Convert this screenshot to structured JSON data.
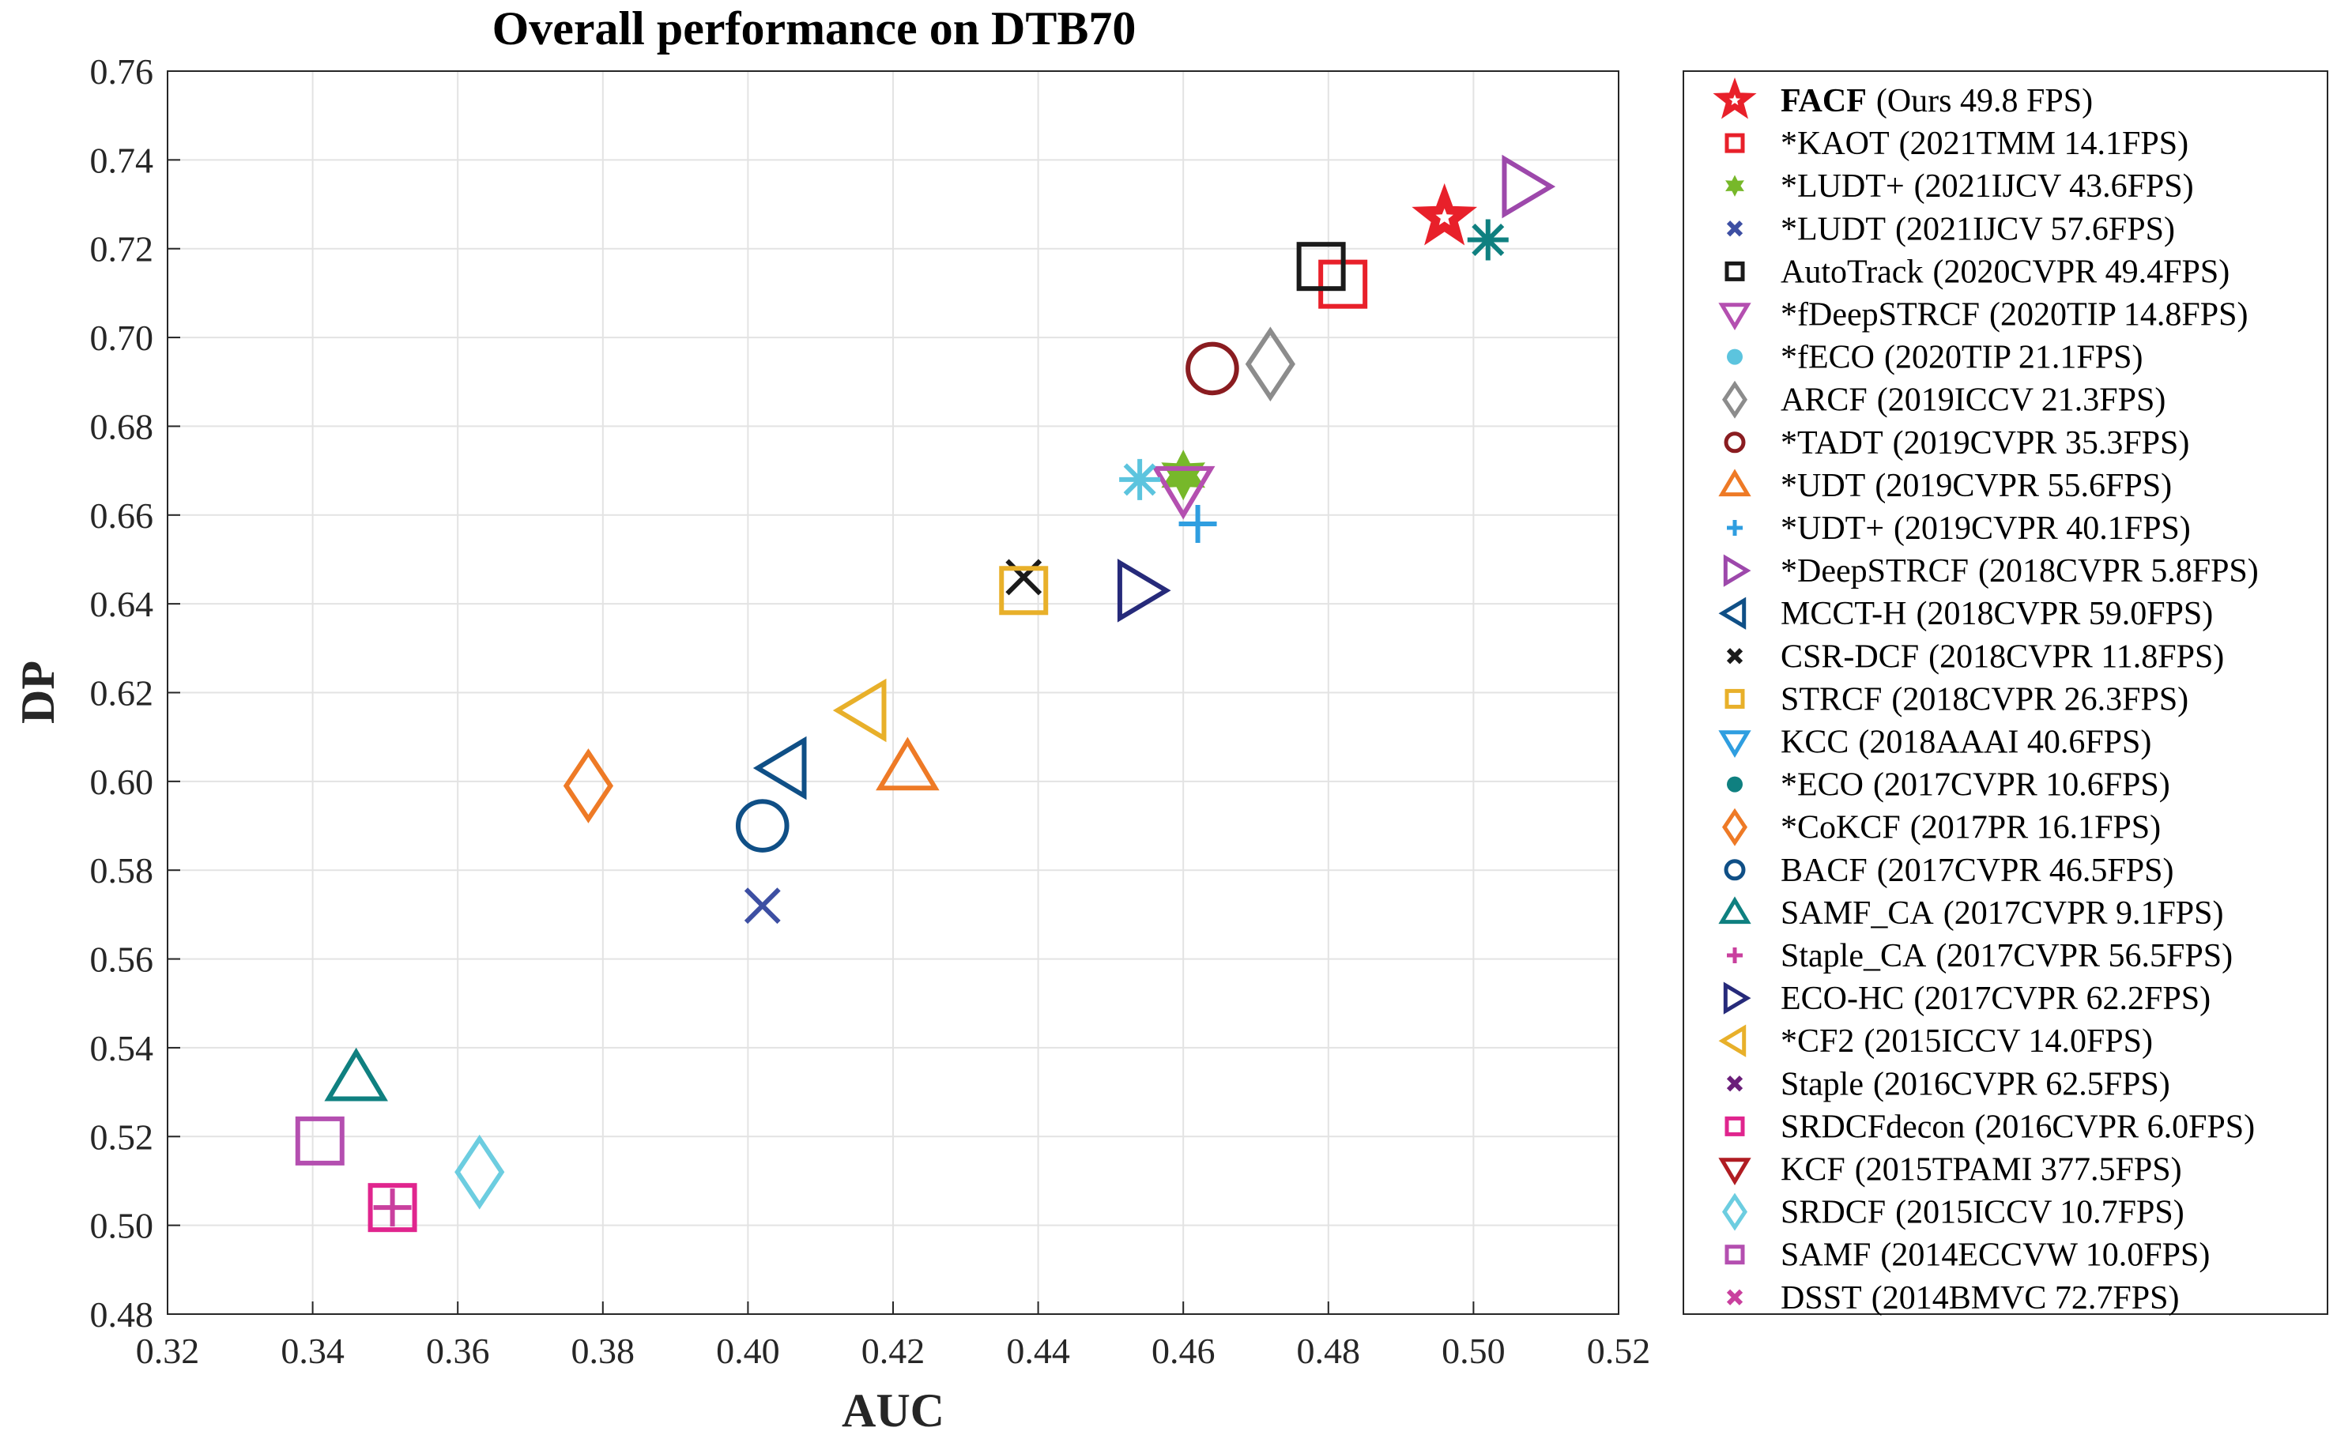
{
  "chart_data": {
    "type": "scatter",
    "title": "Overall performance on DTB70",
    "xlabel": "AUC",
    "ylabel": "DP",
    "xlim": [
      0.32,
      0.52
    ],
    "ylim": [
      0.48,
      0.76
    ],
    "xticks": [
      "0.32",
      "0.34",
      "0.36",
      "0.38",
      "0.40",
      "0.42",
      "0.44",
      "0.46",
      "0.48",
      "0.50",
      "0.52"
    ],
    "yticks": [
      "0.48",
      "0.50",
      "0.52",
      "0.54",
      "0.56",
      "0.58",
      "0.60",
      "0.62",
      "0.64",
      "0.66",
      "0.68",
      "0.70",
      "0.72",
      "0.74",
      "0.76"
    ],
    "grid": true,
    "legend_position": "outside-right",
    "series": [
      {
        "name": "FACF",
        "detail": "(Ours 49.8 FPS)",
        "bold": true,
        "marker": "star",
        "color": "#e8202a",
        "x": 0.496,
        "y": 0.727
      },
      {
        "name": "*KAOT",
        "detail": "(2021TMM 14.1FPS)",
        "marker": "square",
        "color": "#e8202a",
        "x": 0.482,
        "y": 0.712
      },
      {
        "name": "*LUDT+",
        "detail": "(2021IJCV 43.6FPS)",
        "marker": "hexagram",
        "color": "#77b82a",
        "x": 0.46,
        "y": 0.669
      },
      {
        "name": "*LUDT",
        "detail": "(2021IJCV 57.6FPS)",
        "marker": "x",
        "color": "#3d4fa3",
        "x": 0.402,
        "y": 0.572
      },
      {
        "name": "AutoTrack",
        "detail": "(2020CVPR 49.4FPS)",
        "marker": "square",
        "color": "#1a1a1a",
        "x": 0.479,
        "y": 0.716
      },
      {
        "name": "*fDeepSTRCF",
        "detail": "(2020TIP 14.8FPS)",
        "marker": "triangle-down",
        "color": "#b44fb0",
        "x": 0.46,
        "y": 0.666
      },
      {
        "name": "*fECO",
        "detail": "(2020TIP 21.1FPS)",
        "marker": "asterisk",
        "color": "#5cc4de",
        "x": 0.454,
        "y": 0.668
      },
      {
        "name": "ARCF",
        "detail": "(2019ICCV 21.3FPS)",
        "marker": "diamond",
        "color": "#8c8c8c",
        "x": 0.472,
        "y": 0.694
      },
      {
        "name": "*TADT",
        "detail": "(2019CVPR 35.3FPS)",
        "marker": "circle",
        "color": "#8a1c20",
        "x": 0.464,
        "y": 0.693
      },
      {
        "name": "*UDT",
        "detail": "(2019CVPR 55.6FPS)",
        "marker": "triangle-up",
        "color": "#ee7a26",
        "x": 0.422,
        "y": 0.603
      },
      {
        "name": "*UDT+",
        "detail": "(2019CVPR 40.1FPS)",
        "marker": "plus",
        "color": "#2f9ee0",
        "x": 0.462,
        "y": 0.658
      },
      {
        "name": "*DeepSTRCF",
        "detail": "(2018CVPR 5.8FPS)",
        "marker": "triangle-right",
        "color": "#9d48ab",
        "x": 0.507,
        "y": 0.734
      },
      {
        "name": "MCCT-H",
        "detail": "(2018CVPR 59.0FPS)",
        "marker": "triangle-left",
        "color": "#0f4f86",
        "x": 0.405,
        "y": 0.603
      },
      {
        "name": "CSR-DCF",
        "detail": "(2018CVPR 11.8FPS)",
        "marker": "x",
        "color": "#1a1a1a",
        "x": 0.438,
        "y": 0.646
      },
      {
        "name": "STRCF",
        "detail": "(2018CVPR 26.3FPS)",
        "marker": "square",
        "color": "#e8b02a",
        "x": 0.438,
        "y": 0.643
      },
      {
        "name": "KCC",
        "detail": "(2018AAAI 40.6FPS)",
        "marker": "triangle-down",
        "color": "#2f9ee0",
        "x": null,
        "y": null
      },
      {
        "name": "*ECO",
        "detail": "(2017CVPR 10.6FPS)",
        "marker": "asterisk",
        "color": "#0f8080",
        "x": 0.502,
        "y": 0.722
      },
      {
        "name": "*CoKCF",
        "detail": "(2017PR 16.1FPS)",
        "marker": "diamond",
        "color": "#ee7a26",
        "x": 0.378,
        "y": 0.599
      },
      {
        "name": "BACF",
        "detail": "(2017CVPR 46.5FPS)",
        "marker": "circle",
        "color": "#0f4f86",
        "x": 0.402,
        "y": 0.59
      },
      {
        "name": "SAMF_CA",
        "detail": "(2017CVPR 9.1FPS)",
        "marker": "triangle-up",
        "color": "#0f8080",
        "x": 0.346,
        "y": 0.533
      },
      {
        "name": "Staple_CA",
        "detail": "(2017CVPR 56.5FPS)",
        "marker": "plus",
        "color": "#c9409e",
        "x": 0.351,
        "y": 0.504
      },
      {
        "name": "ECO-HC",
        "detail": "(2017CVPR 62.2FPS)",
        "marker": "triangle-right",
        "color": "#262a7a",
        "x": 0.454,
        "y": 0.643
      },
      {
        "name": "*CF2",
        "detail": "(2015ICCV 14.0FPS)",
        "marker": "triangle-left",
        "color": "#e8b02a",
        "x": 0.416,
        "y": 0.616
      },
      {
        "name": "Staple",
        "detail": "(2016CVPR 62.5FPS)",
        "marker": "x",
        "color": "#6b1f7a",
        "x": null,
        "y": null
      },
      {
        "name": "SRDCFdecon",
        "detail": "(2016CVPR 6.0FPS)",
        "marker": "square",
        "color": "#e0258e",
        "x": 0.351,
        "y": 0.504
      },
      {
        "name": "KCF",
        "detail": "(2015TPAMI 377.5FPS)",
        "marker": "triangle-down",
        "color": "#b01c22",
        "x": null,
        "y": null
      },
      {
        "name": "SRDCF",
        "detail": "(2015ICCV 10.7FPS)",
        "marker": "diamond",
        "color": "#6ccde0",
        "x": 0.363,
        "y": 0.512
      },
      {
        "name": "SAMF",
        "detail": "(2014ECCVW 10.0FPS)",
        "marker": "square",
        "color": "#b44fb0",
        "x": 0.341,
        "y": 0.519
      },
      {
        "name": "DSST",
        "detail": "(2014BMVC 72.7FPS)",
        "marker": "x",
        "color": "#c9409e",
        "x": null,
        "y": null
      }
    ]
  }
}
